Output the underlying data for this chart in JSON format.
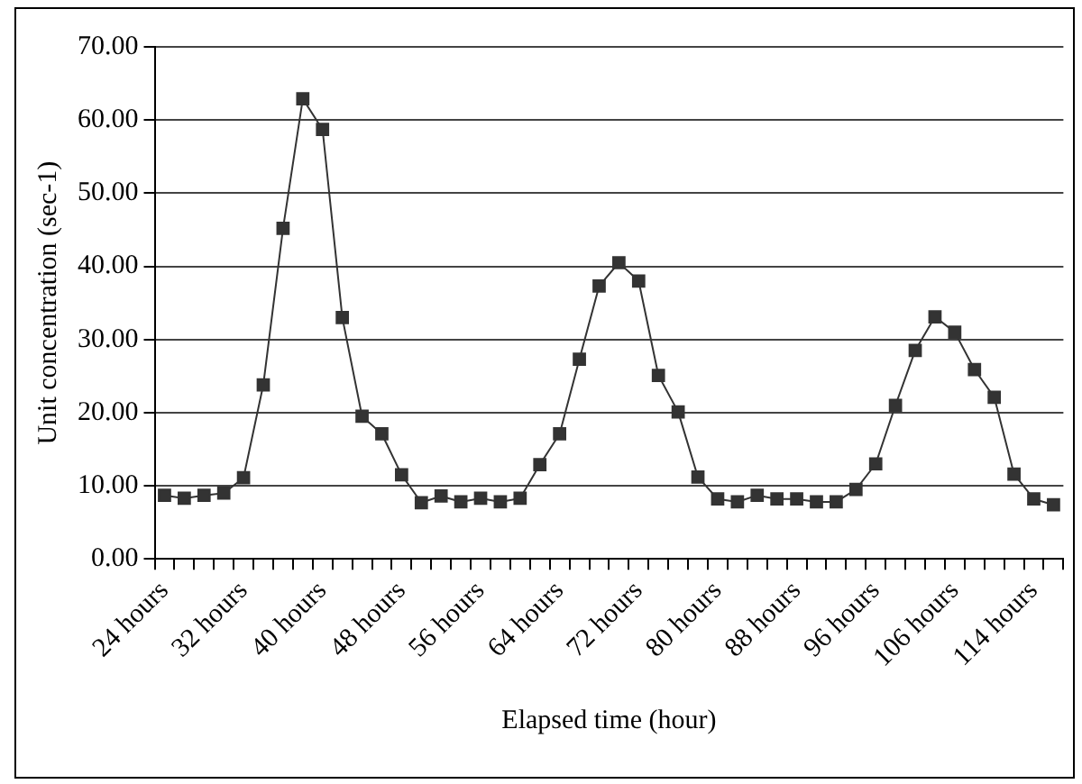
{
  "chart_data": {
    "type": "line",
    "xlabel": "Elapsed time (hour)",
    "ylabel": "Unit concentration (sec-1)",
    "categories": [
      "24 hours",
      null,
      null,
      null,
      "32 hours",
      null,
      null,
      null,
      "40 hours",
      null,
      null,
      null,
      "48 hours",
      null,
      null,
      null,
      "56 hours",
      null,
      null,
      null,
      "64 hours",
      null,
      null,
      null,
      "72 hours",
      null,
      null,
      null,
      "80 hours",
      null,
      null,
      null,
      "88 hours",
      null,
      null,
      null,
      "96 hours",
      null,
      null,
      null,
      "106 hours",
      null,
      null,
      null,
      "114 hours",
      null
    ],
    "series": [
      {
        "color": "#333333",
        "values": [
          8.7,
          8.3,
          8.7,
          9.0,
          11.1,
          23.8,
          45.2,
          62.9,
          58.7,
          33.0,
          19.5,
          17.1,
          11.5,
          7.7,
          8.6,
          7.8,
          8.3,
          7.8,
          8.3,
          12.9,
          17.1,
          27.3,
          37.3,
          40.5,
          38.0,
          25.1,
          20.1,
          11.2,
          8.2,
          7.8,
          8.7,
          8.2,
          8.2,
          7.8,
          7.8,
          9.5,
          13.0,
          21.0,
          28.5,
          33.1,
          31.0,
          25.9,
          22.1,
          11.6,
          8.2,
          7.4
        ]
      }
    ],
    "ylim": [
      0,
      70
    ],
    "yticks": [
      {
        "value": 0,
        "label": "0.00"
      },
      {
        "value": 10,
        "label": "10.00"
      },
      {
        "value": 20,
        "label": "20.00"
      },
      {
        "value": 30,
        "label": "30.00"
      },
      {
        "value": 40,
        "label": "40.00"
      },
      {
        "value": 50,
        "label": "50.00"
      },
      {
        "value": 60,
        "label": "60.00"
      },
      {
        "value": 70,
        "label": "70.00"
      }
    ],
    "grid": "y",
    "legend": false,
    "marker": "square",
    "line_style": "solid"
  }
}
